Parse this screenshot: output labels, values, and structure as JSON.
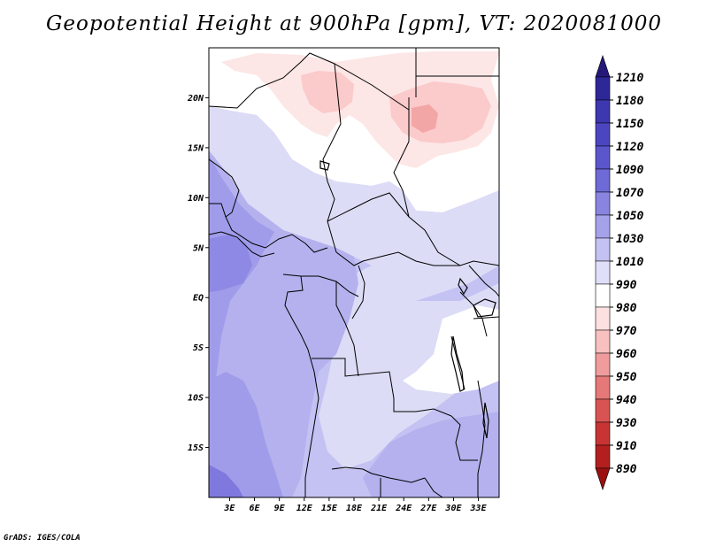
{
  "title": "Geopotential Height at 900hPa [gpm], VT: 2020081000",
  "credit": "GrADS: IGES/COLA",
  "chart_data": {
    "type": "heatmap",
    "variable": "Geopotential Height",
    "level": "900hPa",
    "units": "gpm",
    "valid_time": "2020081000",
    "x_ticks": [
      {
        "value": 3,
        "label": "3E"
      },
      {
        "value": 6,
        "label": "6E"
      },
      {
        "value": 9,
        "label": "9E"
      },
      {
        "value": 12,
        "label": "12E"
      },
      {
        "value": 15,
        "label": "15E"
      },
      {
        "value": 18,
        "label": "18E"
      },
      {
        "value": 21,
        "label": "21E"
      },
      {
        "value": 24,
        "label": "24E"
      },
      {
        "value": 27,
        "label": "27E"
      },
      {
        "value": 30,
        "label": "30E"
      },
      {
        "value": 33,
        "label": "33E"
      }
    ],
    "y_ticks": [
      {
        "value": 20,
        "label": "20N"
      },
      {
        "value": 15,
        "label": "15N"
      },
      {
        "value": 10,
        "label": "10N"
      },
      {
        "value": 5,
        "label": "5N"
      },
      {
        "value": 0,
        "label": "EQ"
      },
      {
        "value": -5,
        "label": "5S"
      },
      {
        "value": -10,
        "label": "10S"
      },
      {
        "value": -15,
        "label": "15S"
      }
    ],
    "lon_range": [
      0.5,
      35.5
    ],
    "lat_range": [
      -20,
      25
    ],
    "colorbar": {
      "labels": [
        "1210",
        "1180",
        "1150",
        "1120",
        "1090",
        "1070",
        "1050",
        "1030",
        "1010",
        "990",
        "980",
        "970",
        "960",
        "950",
        "940",
        "930",
        "910",
        "890"
      ],
      "colors": [
        "#241878",
        "#2e2798",
        "#3d37b0",
        "#4b46c0",
        "#5b56cc",
        "#6e6ad6",
        "#8884e0",
        "#a5a2ea",
        "#c4c2f2",
        "#e0dff9",
        "#ffffff",
        "#fde0e0",
        "#f9c0c0",
        "#f09c9c",
        "#e57878",
        "#d85454",
        "#c83434",
        "#b31f1f",
        "#9a1010"
      ]
    }
  }
}
